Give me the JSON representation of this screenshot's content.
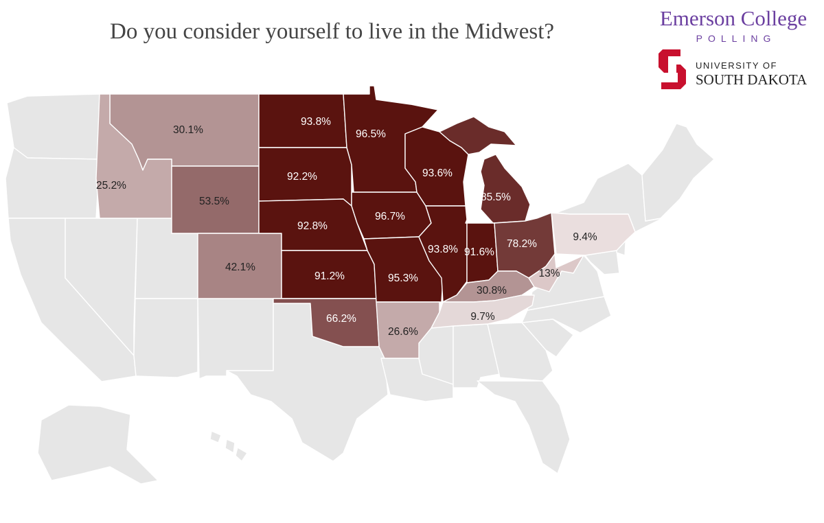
{
  "title": "Do you consider yourself to live in the Midwest?",
  "logos": {
    "emerson_name": "Emerson College",
    "emerson_sub": "POLLING",
    "usd_line1": "UNIVERSITY OF",
    "usd_line2": "SOUTH DAKOTA"
  },
  "colors": {
    "no_data": "#e6e6e6",
    "text_dark": "#222222",
    "text_light": "#ffffff"
  },
  "states": [
    {
      "name": "Montana",
      "value": "30.1%",
      "fill": "#b39494"
    },
    {
      "name": "Idaho",
      "value": "25.2%",
      "fill": "#c4aaaa"
    },
    {
      "name": "Wyoming",
      "value": "53.5%",
      "fill": "#946a6a"
    },
    {
      "name": "Colorado",
      "value": "42.1%",
      "fill": "#a88484"
    },
    {
      "name": "North Dakota",
      "value": "93.8%",
      "fill": "#5a130f"
    },
    {
      "name": "South Dakota",
      "value": "92.2%",
      "fill": "#5a130f"
    },
    {
      "name": "Nebraska",
      "value": "92.8%",
      "fill": "#5a130f"
    },
    {
      "name": "Kansas",
      "value": "91.2%",
      "fill": "#5a130f"
    },
    {
      "name": "Oklahoma",
      "value": "66.2%",
      "fill": "#845050"
    },
    {
      "name": "Minnesota",
      "value": "96.5%",
      "fill": "#5a130f"
    },
    {
      "name": "Iowa",
      "value": "96.7%",
      "fill": "#5a130f"
    },
    {
      "name": "Missouri",
      "value": "95.3%",
      "fill": "#5a130f"
    },
    {
      "name": "Arkansas",
      "value": "26.6%",
      "fill": "#c4aaaa"
    },
    {
      "name": "Wisconsin",
      "value": "93.6%",
      "fill": "#5a130f"
    },
    {
      "name": "Illinois",
      "value": "93.8%",
      "fill": "#5a130f"
    },
    {
      "name": "Michigan",
      "value": "85.5%",
      "fill": "#6a2c2a"
    },
    {
      "name": "Indiana",
      "value": "91.6%",
      "fill": "#5a130f"
    },
    {
      "name": "Ohio",
      "value": "78.2%",
      "fill": "#733a38"
    },
    {
      "name": "Kentucky",
      "value": "30.8%",
      "fill": "#b39494"
    },
    {
      "name": "Tennessee",
      "value": "9.7%",
      "fill": "#e4d8d8"
    },
    {
      "name": "West Virginia",
      "value": "13%",
      "fill": "#dcc8c8"
    },
    {
      "name": "Pennsylvania",
      "value": "9.4%",
      "fill": "#eadede"
    }
  ]
}
